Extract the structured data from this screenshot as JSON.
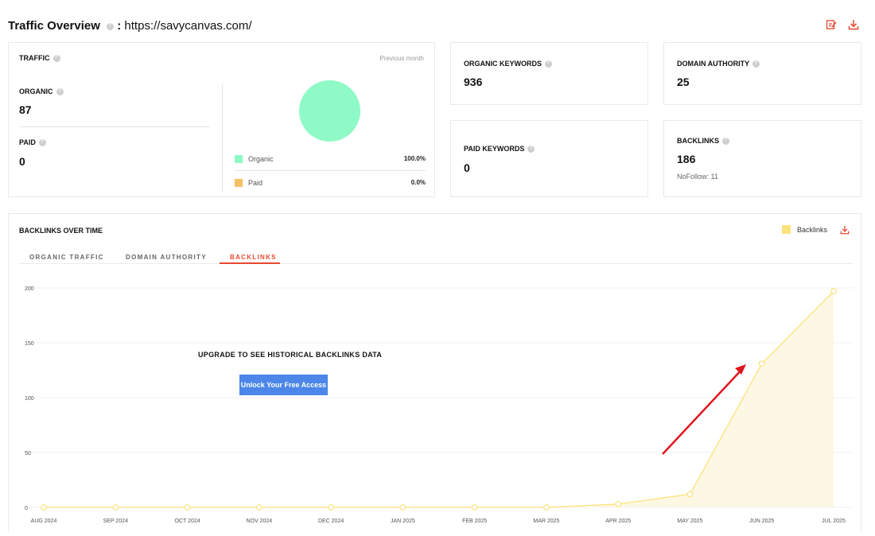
{
  "header": {
    "title": "Traffic Overview",
    "separator": ":",
    "url": "https://savycanvas.com/",
    "icons": [
      "edit-report-icon",
      "download-icon"
    ],
    "accent_color": "#e8482f"
  },
  "traffic": {
    "label": "TRAFFIC",
    "period": "Previous month",
    "organic_label": "ORGANIC",
    "organic_value": "87",
    "paid_label": "PAID",
    "paid_value": "0",
    "legend": [
      {
        "name": "Organic",
        "percent": "100.0%",
        "color": "#8ffac6"
      },
      {
        "name": "Paid",
        "percent": "0.0%",
        "color": "#f6bf63"
      }
    ]
  },
  "organic_keywords": {
    "label": "ORGANIC KEYWORDS",
    "value": "936"
  },
  "domain_authority": {
    "label": "DOMAIN AUTHORITY",
    "value": "25"
  },
  "paid_keywords": {
    "label": "PAID KEYWORDS",
    "value": "0"
  },
  "backlinks": {
    "label": "BACKLINKS",
    "value": "186",
    "nofollow": "NoFollow: 11"
  },
  "chart_section": {
    "title": "BACKLINKS OVER TIME",
    "legend_label": "Backlinks",
    "tabs": [
      "ORGANIC TRAFFIC",
      "DOMAIN AUTHORITY",
      "BACKLINKS"
    ],
    "active_tab": "BACKLINKS",
    "upgrade_text": "UPGRADE TO SEE HISTORICAL BACKLINKS DATA",
    "unlock_label": "Unlock Your Free Access"
  },
  "chart_data": {
    "type": "area",
    "categories": [
      "AUG 2024",
      "SEP 2024",
      "OCT 2024",
      "NOV 2024",
      "DEC 2024",
      "JAN 2025",
      "FEB 2025",
      "MAR 2025",
      "APR 2025",
      "MAY 2025",
      "JUN 2025",
      "JUL 2025"
    ],
    "series": [
      {
        "name": "Backlinks",
        "color": "#fbe27c",
        "values": [
          0,
          0,
          0,
          0,
          0,
          0,
          0,
          0,
          3,
          12,
          131,
          197
        ]
      }
    ],
    "yticks": [
      0,
      50,
      100,
      150,
      200
    ],
    "ylim": [
      0,
      200
    ],
    "grid": true,
    "legend": "top-right"
  }
}
